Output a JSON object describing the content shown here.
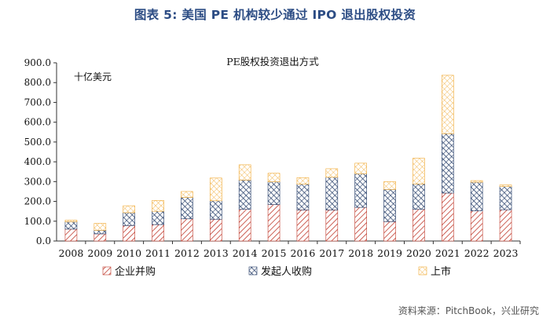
{
  "figure_title": "图表 5: 美国 PE 机构较少通过 IPO 退出股权投资",
  "source": "资料来源：PitchBook，兴业研究",
  "chart_data": {
    "type": "bar",
    "stacked": true,
    "title": "PE股权投资退出方式",
    "unit_label": "十亿美元",
    "ylim": [
      0,
      900
    ],
    "y_ticks": [
      "0.0",
      "100.0",
      "200.0",
      "300.0",
      "400.0",
      "500.0",
      "600.0",
      "700.0",
      "800.0",
      "900.0"
    ],
    "grid": false,
    "legend_position": "bottom",
    "categories": [
      "2008",
      "2009",
      "2010",
      "2011",
      "2012",
      "2013",
      "2014",
      "2015",
      "2016",
      "2017",
      "2018",
      "2019",
      "2020",
      "2021",
      "2022",
      "2023"
    ],
    "series": [
      {
        "name": "企业并购",
        "color": "#c0392b",
        "pattern": "diag-red",
        "values": [
          60,
          36,
          78,
          83,
          112,
          110,
          160,
          184,
          157,
          157,
          170,
          98,
          160,
          242,
          152,
          158
        ]
      },
      {
        "name": "发起人收购",
        "color": "#1f3864",
        "pattern": "cross-navy",
        "values": [
          37,
          18,
          65,
          67,
          108,
          93,
          148,
          115,
          130,
          165,
          170,
          162,
          128,
          300,
          145,
          117
        ]
      },
      {
        "name": "上市",
        "color": "#f0a830",
        "pattern": "grid-orange",
        "values": [
          8,
          35,
          35,
          55,
          30,
          115,
          77,
          43,
          33,
          43,
          53,
          40,
          130,
          295,
          8,
          8
        ]
      }
    ]
  }
}
